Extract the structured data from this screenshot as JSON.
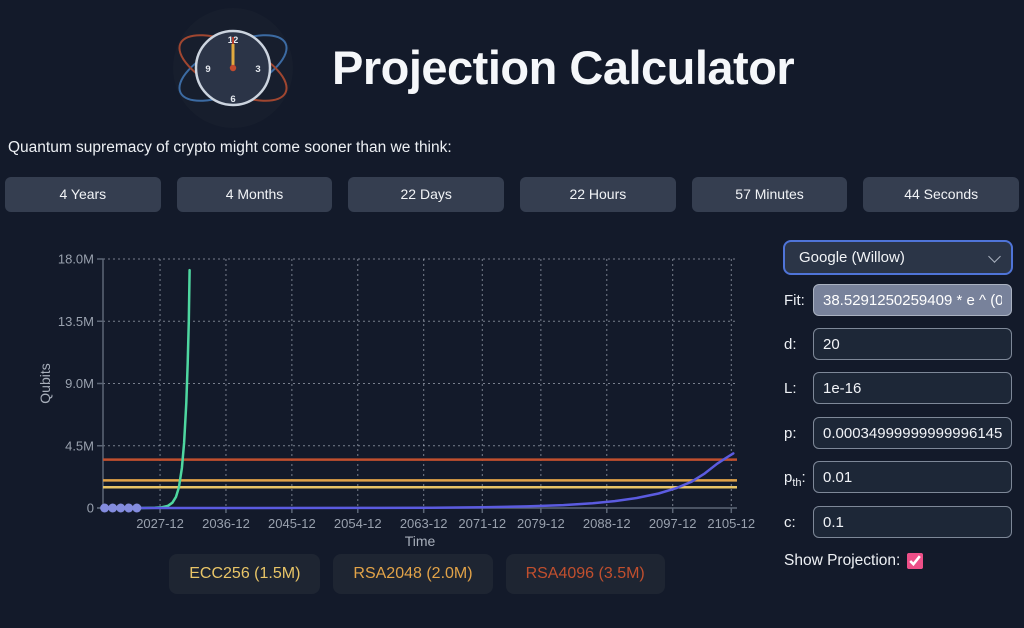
{
  "header": {
    "title": "Projection Calculator",
    "icon": "doomsday-clock-icon"
  },
  "subtitle": "Quantum supremacy of crypto might come sooner than we think:",
  "countdown": {
    "units": [
      {
        "label": "4 Years"
      },
      {
        "label": "4 Months"
      },
      {
        "label": "22 Days"
      },
      {
        "label": "22 Hours"
      },
      {
        "label": "57 Minutes"
      },
      {
        "label": "44 Seconds"
      }
    ]
  },
  "chart_data": {
    "type": "line",
    "title": "",
    "xlabel": "Time",
    "ylabel": "Qubits",
    "grid": "dotted",
    "legend_position": "bottom",
    "xlim": [
      2020.13,
      2106.7
    ],
    "ylim_millions": [
      0,
      18
    ],
    "x_ticks": [
      {
        "t": 2027.92,
        "label": "2027-12"
      },
      {
        "t": 2036.92,
        "label": "2036-12"
      },
      {
        "t": 2045.92,
        "label": "2045-12"
      },
      {
        "t": 2054.92,
        "label": "2054-12"
      },
      {
        "t": 2063.92,
        "label": "2063-12"
      },
      {
        "t": 2071.92,
        "label": "2071-12"
      },
      {
        "t": 2079.92,
        "label": "2079-12"
      },
      {
        "t": 2088.92,
        "label": "2088-12"
      },
      {
        "t": 2097.92,
        "label": "2097-12"
      },
      {
        "t": 2105.92,
        "label": "2105-12"
      }
    ],
    "y_ticks": [
      {
        "v": 0,
        "label": "0"
      },
      {
        "v": 4.5,
        "label": "4.5M"
      },
      {
        "v": 9,
        "label": "9.0M"
      },
      {
        "v": 13.5,
        "label": "13.5M"
      },
      {
        "v": 18,
        "label": "18.0M"
      }
    ],
    "series": [
      {
        "name": "fit-curve",
        "type": "line",
        "color": "#4ed7a0",
        "points": [
          [
            2020.2,
            0
          ],
          [
            2025.5,
            0.001
          ],
          [
            2027.2,
            0.012
          ],
          [
            2028.2,
            0.06
          ],
          [
            2029.0,
            0.16
          ],
          [
            2029.6,
            0.38
          ],
          [
            2030.1,
            0.8
          ],
          [
            2030.5,
            1.5
          ],
          [
            2030.9,
            2.9
          ],
          [
            2031.2,
            4.7
          ],
          [
            2031.5,
            7.6
          ],
          [
            2031.7,
            10.5
          ],
          [
            2031.85,
            13.5
          ],
          [
            2031.95,
            17.2
          ]
        ]
      },
      {
        "name": "projection-curve",
        "type": "line",
        "color": "#5b5be0",
        "points": [
          [
            2020.2,
            0
          ],
          [
            2040,
            0.002
          ],
          [
            2055,
            0.006
          ],
          [
            2065,
            0.022
          ],
          [
            2072,
            0.055
          ],
          [
            2078,
            0.115
          ],
          [
            2083,
            0.21
          ],
          [
            2087,
            0.35
          ],
          [
            2090,
            0.5
          ],
          [
            2093,
            0.72
          ],
          [
            2096,
            1.05
          ],
          [
            2098.5,
            1.45
          ],
          [
            2100.5,
            1.9
          ],
          [
            2102.3,
            2.5
          ],
          [
            2104,
            3.2
          ],
          [
            2105.3,
            3.65
          ],
          [
            2106.2,
            3.95
          ]
        ]
      },
      {
        "name": "historical-qubits",
        "type": "scatter",
        "color": "#838cde",
        "points": [
          [
            2020.35,
            0
          ],
          [
            2021.45,
            0
          ],
          [
            2022.55,
            0
          ],
          [
            2023.65,
            0
          ],
          [
            2024.75,
            0
          ]
        ]
      }
    ],
    "thresholds": [
      {
        "name": "ECC256",
        "value_millions": 1.5,
        "color": "#e9c567",
        "label": "ECC256 (1.5M)"
      },
      {
        "name": "RSA2048",
        "value_millions": 2.0,
        "color": "#e2a348",
        "label": "RSA2048 (2.0M)"
      },
      {
        "name": "RSA4096",
        "value_millions": 3.5,
        "color": "#c14f2e",
        "label": "RSA4096 (3.5M)"
      }
    ]
  },
  "controls": {
    "hardware_select": {
      "value": "Google (Willow)"
    },
    "fields": [
      {
        "key": "fit",
        "label": "Fit:",
        "value": "38.5291250259409 * e ^ (0",
        "readonly": true
      },
      {
        "key": "d",
        "label": "d:",
        "value": "20"
      },
      {
        "key": "L",
        "label": "L:",
        "value": "1e-16"
      },
      {
        "key": "p",
        "label": "p:",
        "value": "0.00034999999999996145"
      },
      {
        "key": "pth",
        "label": "p",
        "label_sub": "th",
        "label_suffix": ":",
        "value": "0.01"
      },
      {
        "key": "c",
        "label": "c:",
        "value": "0.1"
      }
    ],
    "show_projection": {
      "label": "Show Projection:",
      "checked": true
    }
  },
  "colors": {
    "background": "#131a2a",
    "button_bg": "#353e50",
    "legend_chip_bg": "#1e2532",
    "input_bg": "#1d2737",
    "input_border": "#7e8898",
    "readonly_input_bg": "#78829b",
    "select_border": "#4f74d8",
    "checkbox_accent": "#ed4f88",
    "fit_line": "#4ed7a0",
    "projection_line": "#5b5be0",
    "dots": "#838cde",
    "ecc256": "#e9c567",
    "rsa2048": "#e2a348",
    "rsa4096": "#c14f2e"
  }
}
